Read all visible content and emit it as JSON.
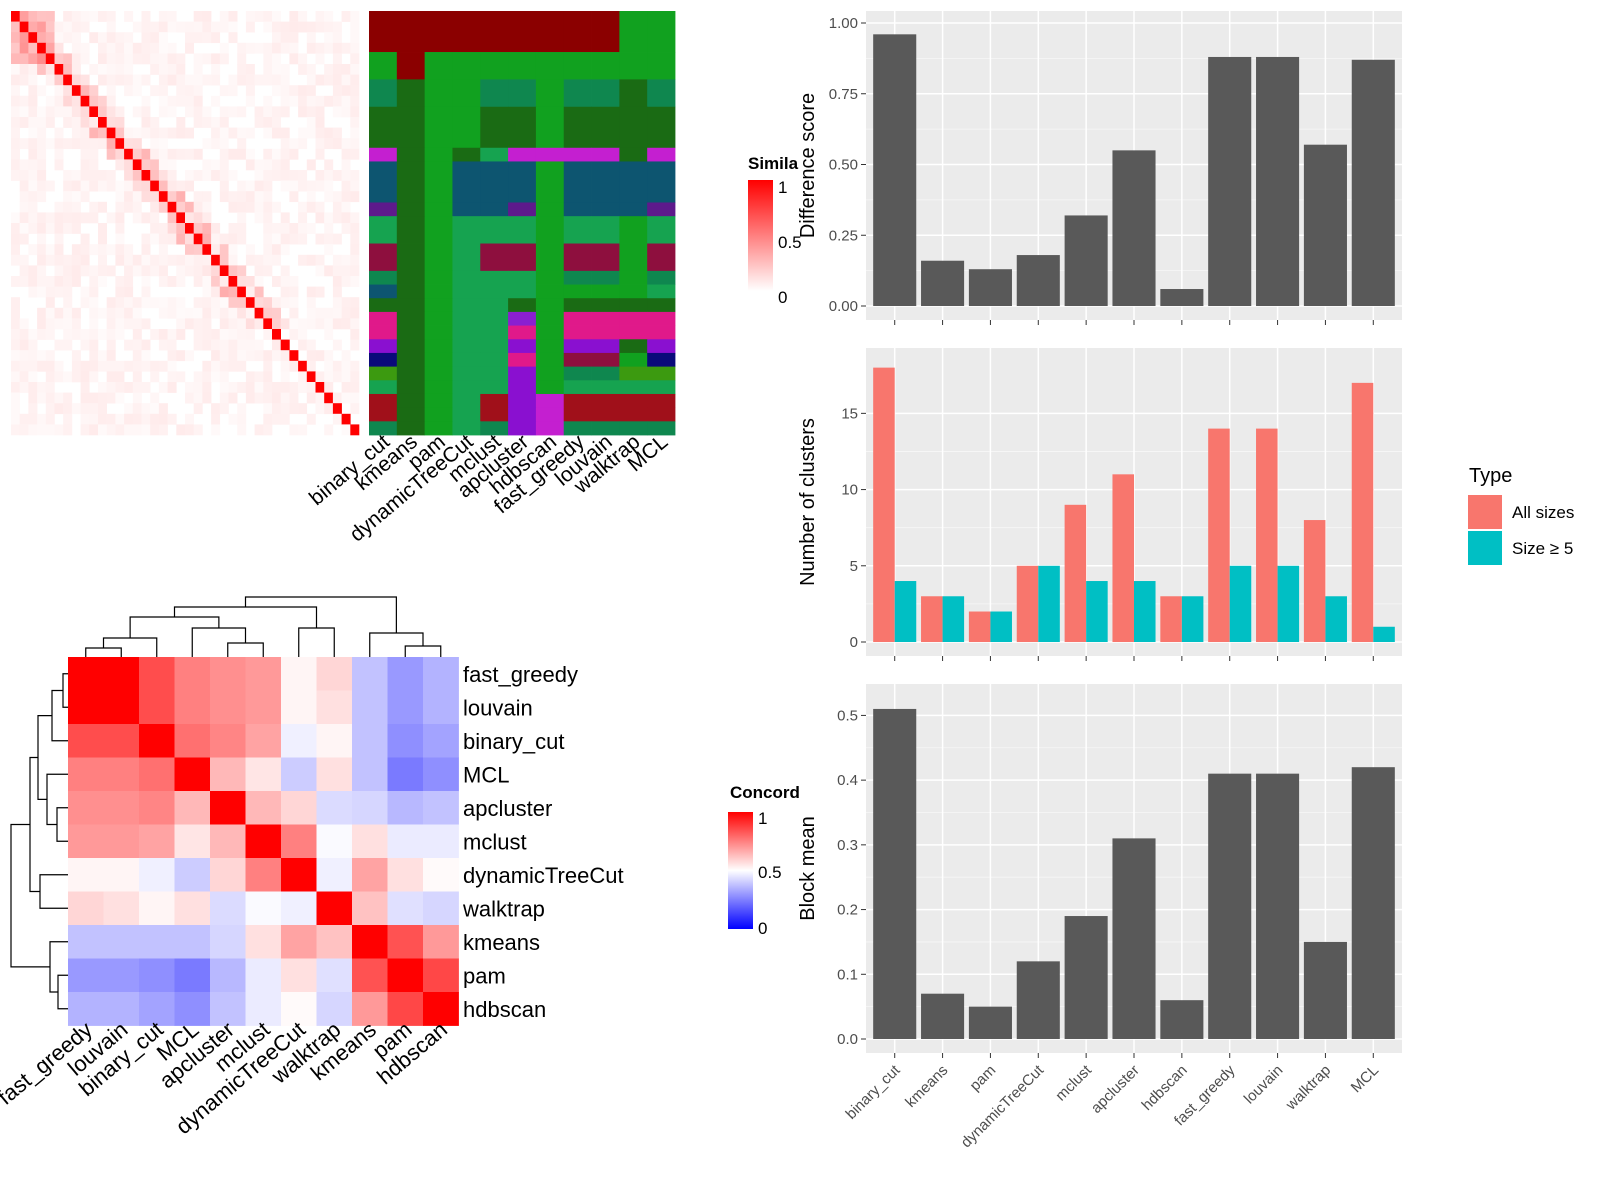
{
  "colors": {
    "panel_bg": "#EBEBEB",
    "grid": "#FFFFFF",
    "bar": "#595959",
    "all_sizes": "#F8766D",
    "size_ge_5": "#00BFC4",
    "sim_high": "#FF0000",
    "sim_low": "#FFFFFF",
    "conc_high": "#FF0000",
    "conc_mid": "#FFFFFF",
    "conc_low": "#0000FF"
  },
  "chart_data": [
    {
      "id": "similarity_heatmap",
      "type": "heatmap",
      "n_rows": 40,
      "diagonal_value": 1,
      "legend": {
        "title": "Simila",
        "ticks": [
          "1",
          "0.5",
          "0"
        ],
        "range": [
          0,
          1
        ]
      }
    },
    {
      "id": "cluster_assignment_heatmap",
      "type": "heatmap",
      "columns": [
        "binary_cut",
        "kmeans",
        "pam",
        "dynamicTreeCut",
        "mclust",
        "apcluster",
        "hdbscan",
        "fast_greedy",
        "louvain",
        "walktrap",
        "MCL"
      ],
      "row_heights": [
        3,
        2,
        2,
        3,
        1,
        3,
        1,
        2,
        2,
        1,
        1,
        1,
        1,
        1,
        1,
        1,
        1,
        1,
        1,
        1,
        1
      ],
      "cells": [
        [
          "#8B0000",
          "#8B0000",
          "#8B0000",
          "#8B0000",
          "#8B0000",
          "#8B0000",
          "#8B0000",
          "#8B0000",
          "#8B0000",
          "#11A11F",
          "#11A11F"
        ],
        [
          "#11A11F",
          "#8B0000",
          "#11A11F",
          "#11A11F",
          "#11A11F",
          "#11A11F",
          "#11A11F",
          "#11A11F",
          "#11A11F",
          "#11A11F",
          "#11A11F"
        ],
        [
          "#0F874F",
          "#1A6B14",
          "#11A11F",
          "#11A11F",
          "#0F874F",
          "#0F874F",
          "#11A11F",
          "#0F874F",
          "#0F874F",
          "#1A6B14",
          "#0F874F"
        ],
        [
          "#1A6B14",
          "#1A6B14",
          "#11A11F",
          "#11A11F",
          "#1A6B14",
          "#1A6B14",
          "#11A11F",
          "#1A6B14",
          "#1A6B14",
          "#1A6B14",
          "#1A6B14"
        ],
        [
          "#C41FD0",
          "#1A6B14",
          "#11A11F",
          "#1A6B14",
          "#16A350",
          "#C41FD0",
          "#C41FD0",
          "#C41FD0",
          "#C41FD0",
          "#1A6B14",
          "#C41FD0"
        ],
        [
          "#0D5570",
          "#1A6B14",
          "#11A11F",
          "#0D5570",
          "#0D5570",
          "#0D5570",
          "#11A11F",
          "#0D5570",
          "#0D5570",
          "#0D5570",
          "#0D5570"
        ],
        [
          "#5E1A8C",
          "#1A6B14",
          "#11A11F",
          "#0D5570",
          "#0D5570",
          "#5E1A8C",
          "#11A11F",
          "#0D5570",
          "#0D5570",
          "#0D5570",
          "#5E1A8C"
        ],
        [
          "#16A350",
          "#1A6B14",
          "#11A11F",
          "#16A350",
          "#16A350",
          "#16A350",
          "#11A11F",
          "#16A350",
          "#16A350",
          "#11A11F",
          "#16A350"
        ],
        [
          "#8E0F3E",
          "#1A6B14",
          "#11A11F",
          "#16A350",
          "#8E0F3E",
          "#8E0F3E",
          "#11A11F",
          "#8E0F3E",
          "#8E0F3E",
          "#11A11F",
          "#8E0F3E"
        ],
        [
          "#0F874F",
          "#1A6B14",
          "#11A11F",
          "#16A350",
          "#16A350",
          "#16A350",
          "#11A11F",
          "#0F874F",
          "#0F874F",
          "#11A11F",
          "#0F874F"
        ],
        [
          "#0D5570",
          "#1A6B14",
          "#11A11F",
          "#16A350",
          "#16A350",
          "#16A350",
          "#11A11F",
          "#11A11F",
          "#11A11F",
          "#11A11F",
          "#16A350"
        ],
        [
          "#1A6B14",
          "#1A6B14",
          "#11A11F",
          "#16A350",
          "#16A350",
          "#1A6B14",
          "#11A11F",
          "#1A6B14",
          "#1A6B14",
          "#1A6B14",
          "#1A6B14"
        ],
        [
          "#E0198A",
          "#1A6B14",
          "#11A11F",
          "#16A350",
          "#16A350",
          "#8A1FD0",
          "#11A11F",
          "#E0198A",
          "#E0198A",
          "#E0198A",
          "#E0198A"
        ],
        [
          "#E0198A",
          "#1A6B14",
          "#11A11F",
          "#16A350",
          "#16A350",
          "#E0198A",
          "#11A11F",
          "#E0198A",
          "#E0198A",
          "#E0198A",
          "#E0198A"
        ],
        [
          "#8A10D0",
          "#1A6B14",
          "#11A11F",
          "#16A350",
          "#16A350",
          "#8A10D0",
          "#11A11F",
          "#8A10D0",
          "#8A10D0",
          "#1A6B14",
          "#8A10D0"
        ],
        [
          "#0A0A7A",
          "#1A6B14",
          "#11A11F",
          "#16A350",
          "#16A350",
          "#E0198A",
          "#11A11F",
          "#8E0F3E",
          "#8E0F3E",
          "#11A11F",
          "#0A0A7A"
        ],
        [
          "#3C9A10",
          "#1A6B14",
          "#11A11F",
          "#16A350",
          "#16A350",
          "#8A10D0",
          "#11A11F",
          "#0F874F",
          "#0F874F",
          "#3C9A10",
          "#3C9A10"
        ],
        [
          "#16A350",
          "#1A6B14",
          "#11A11F",
          "#16A350",
          "#16A350",
          "#8A10D0",
          "#11A11F",
          "#16A350",
          "#16A350",
          "#16A350",
          "#16A350"
        ],
        [
          "#A0101A",
          "#1A6B14",
          "#11A11F",
          "#16A350",
          "#A0101A",
          "#8A10D0",
          "#C41FD0",
          "#A0101A",
          "#A0101A",
          "#A0101A",
          "#A0101A"
        ],
        [
          "#A0101A",
          "#1A6B14",
          "#11A11F",
          "#16A350",
          "#A0101A",
          "#8A10D0",
          "#C41FD0",
          "#A0101A",
          "#A0101A",
          "#A0101A",
          "#A0101A"
        ],
        [
          "#0F874F",
          "#1A6B14",
          "#11A11F",
          "#16A350",
          "#0F874F",
          "#8A10D0",
          "#C41FD0",
          "#0F874F",
          "#0F874F",
          "#0F874F",
          "#0F874F"
        ]
      ]
    },
    {
      "id": "difference_score",
      "type": "bar",
      "categories": [
        "binary_cut",
        "kmeans",
        "pam",
        "dynamicTreeCut",
        "mclust",
        "apcluster",
        "hdbscan",
        "fast_greedy",
        "louvain",
        "walktrap",
        "MCL"
      ],
      "values": [
        0.96,
        0.16,
        0.13,
        0.18,
        0.32,
        0.55,
        0.06,
        0.88,
        0.88,
        0.57,
        0.87
      ],
      "ylabel": "Difference score",
      "ylim": [
        0,
        1
      ],
      "yticks": [
        "0.00",
        "0.25",
        "0.50",
        "0.75",
        "1.00"
      ],
      "grid": true
    },
    {
      "id": "number_of_clusters",
      "type": "bar",
      "categories": [
        "binary_cut",
        "kmeans",
        "pam",
        "dynamicTreeCut",
        "mclust",
        "apcluster",
        "hdbscan",
        "fast_greedy",
        "louvain",
        "walktrap",
        "MCL"
      ],
      "series": [
        {
          "name": "All sizes",
          "values": [
            18,
            3,
            2,
            5,
            9,
            11,
            3,
            14,
            14,
            8,
            17
          ]
        },
        {
          "name": "Size ≥ 5",
          "values": [
            4,
            3,
            2,
            5,
            4,
            4,
            3,
            5,
            5,
            3,
            1
          ]
        }
      ],
      "ylabel": "Number of clusters",
      "ylim": [
        0,
        18.5
      ],
      "yticks": [
        "0",
        "5",
        "10",
        "15"
      ],
      "legend": {
        "title": "Type",
        "position": "right"
      },
      "grid": true
    },
    {
      "id": "block_mean",
      "type": "bar",
      "categories": [
        "binary_cut",
        "kmeans",
        "pam",
        "dynamicTreeCut",
        "mclust",
        "apcluster",
        "hdbscan",
        "fast_greedy",
        "louvain",
        "walktrap",
        "MCL"
      ],
      "values": [
        0.51,
        0.07,
        0.05,
        0.12,
        0.19,
        0.31,
        0.06,
        0.41,
        0.41,
        0.15,
        0.42
      ],
      "ylabel": "Block mean",
      "ylim": [
        0,
        0.53
      ],
      "yticks": [
        "0.0",
        "0.1",
        "0.2",
        "0.3",
        "0.4",
        "0.5"
      ],
      "grid": true
    },
    {
      "id": "concordance_heatmap",
      "type": "heatmap",
      "rows": [
        "fast_greedy",
        "louvain",
        "binary_cut",
        "MCL",
        "apcluster",
        "mclust",
        "dynamicTreeCut",
        "walktrap",
        "kmeans",
        "pam",
        "hdbscan"
      ],
      "columns": [
        "fast_greedy",
        "louvain",
        "binary_cut",
        "MCL",
        "apcluster",
        "mclust",
        "dynamicTreeCut",
        "walktrap",
        "kmeans",
        "pam",
        "hdbscan"
      ],
      "values": [
        [
          1.0,
          1.0,
          0.85,
          0.75,
          0.72,
          0.7,
          0.52,
          0.58,
          0.38,
          0.3,
          0.35
        ],
        [
          1.0,
          1.0,
          0.85,
          0.75,
          0.72,
          0.7,
          0.52,
          0.56,
          0.38,
          0.3,
          0.35
        ],
        [
          0.85,
          0.85,
          1.0,
          0.78,
          0.74,
          0.68,
          0.47,
          0.52,
          0.38,
          0.28,
          0.32
        ],
        [
          0.75,
          0.75,
          0.78,
          1.0,
          0.64,
          0.55,
          0.4,
          0.56,
          0.38,
          0.24,
          0.28
        ],
        [
          0.72,
          0.72,
          0.74,
          0.64,
          1.0,
          0.64,
          0.58,
          0.43,
          0.42,
          0.36,
          0.38
        ],
        [
          0.7,
          0.7,
          0.68,
          0.55,
          0.64,
          1.0,
          0.75,
          0.49,
          0.56,
          0.46,
          0.46
        ],
        [
          0.52,
          0.52,
          0.47,
          0.4,
          0.58,
          0.75,
          1.0,
          0.47,
          0.68,
          0.56,
          0.51
        ],
        [
          0.58,
          0.56,
          0.52,
          0.56,
          0.43,
          0.49,
          0.47,
          1.0,
          0.62,
          0.44,
          0.42
        ],
        [
          0.38,
          0.38,
          0.38,
          0.38,
          0.42,
          0.56,
          0.68,
          0.62,
          1.0,
          0.84,
          0.7
        ],
        [
          0.3,
          0.3,
          0.28,
          0.24,
          0.36,
          0.46,
          0.56,
          0.44,
          0.84,
          1.0,
          0.86
        ],
        [
          0.35,
          0.35,
          0.32,
          0.28,
          0.38,
          0.46,
          0.51,
          0.42,
          0.7,
          0.86,
          1.0
        ]
      ],
      "legend": {
        "title": "Concord",
        "ticks": [
          "1",
          "0.5",
          "0"
        ],
        "range": [
          0,
          1
        ]
      },
      "dendrogram": true
    }
  ]
}
